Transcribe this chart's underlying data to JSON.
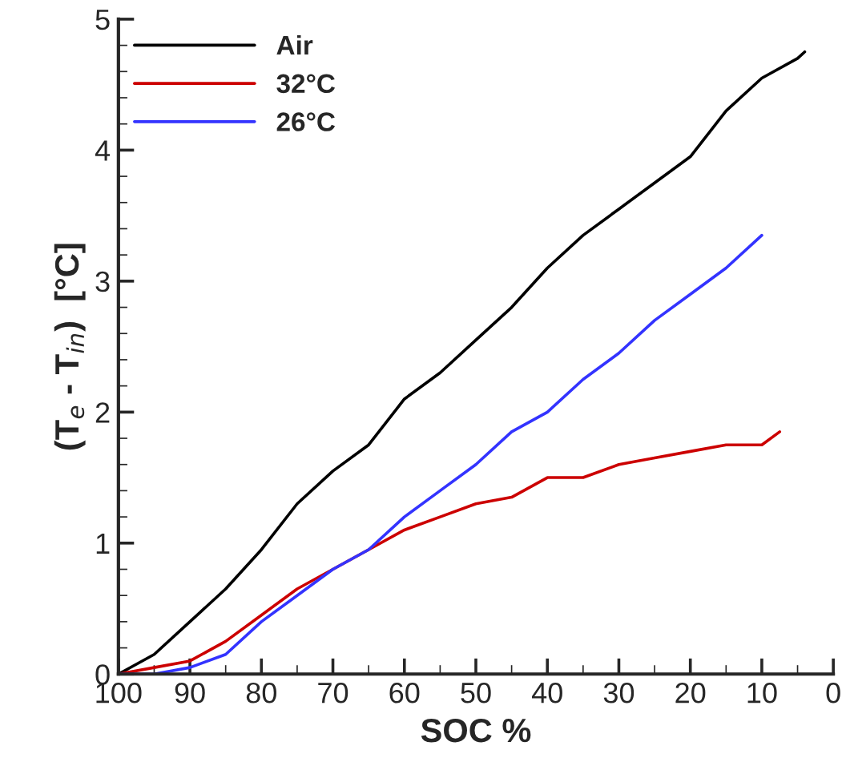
{
  "chart_data": {
    "type": "line",
    "xlabel": "SOC %",
    "ylabel": "(T$_{e}$ - T$_{in}$)  [°C]",
    "xlim": [
      100,
      0
    ],
    "xticks": [
      100,
      90,
      80,
      70,
      60,
      50,
      40,
      30,
      20,
      10,
      0
    ],
    "ylim": [
      0,
      5
    ],
    "yticks": [
      0,
      1,
      2,
      3,
      4,
      5
    ],
    "grid": false,
    "legend": "top left",
    "marker": "none",
    "line_style": "solid",
    "series": [
      {
        "name": "Air",
        "color": "#000000",
        "x": [
          100,
          95,
          90,
          85,
          80,
          75,
          70,
          65,
          60,
          55,
          50,
          45,
          40,
          35,
          30,
          25,
          20,
          15,
          10,
          5,
          4
        ],
        "values": [
          0,
          0.15,
          0.4,
          0.65,
          0.95,
          1.3,
          1.55,
          1.75,
          2.1,
          2.3,
          2.55,
          2.8,
          3.1,
          3.35,
          3.55,
          3.75,
          3.95,
          4.3,
          4.55,
          4.7,
          4.75
        ]
      },
      {
        "name": "32°C",
        "color": "#cc0000",
        "x": [
          100,
          95,
          90,
          85,
          80,
          75,
          70,
          65,
          60,
          55,
          50,
          45,
          40,
          35,
          30,
          25,
          20,
          15,
          10,
          7.5
        ],
        "values": [
          0,
          0.05,
          0.1,
          0.25,
          0.45,
          0.65,
          0.8,
          0.95,
          1.1,
          1.2,
          1.3,
          1.35,
          1.5,
          1.5,
          1.6,
          1.65,
          1.7,
          1.75,
          1.75,
          1.85
        ]
      },
      {
        "name": "26°C",
        "color": "#3333ff",
        "x": [
          100,
          95,
          90,
          85,
          80,
          75,
          70,
          65,
          60,
          55,
          50,
          45,
          40,
          35,
          30,
          25,
          20,
          15,
          10
        ],
        "values": [
          0,
          0,
          0.05,
          0.15,
          0.4,
          0.6,
          0.8,
          0.95,
          1.2,
          1.4,
          1.6,
          1.85,
          2.0,
          2.25,
          2.45,
          2.7,
          2.9,
          3.1,
          3.35
        ]
      }
    ]
  }
}
